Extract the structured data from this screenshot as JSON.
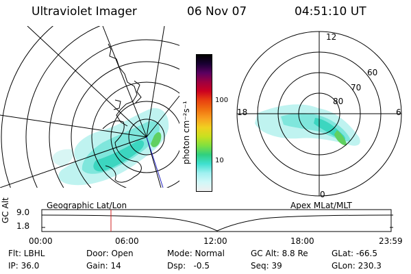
{
  "header": {
    "title": "Ultraviolet Imager",
    "date": "06 Nov 07",
    "time": "04:51:10 UT"
  },
  "colorbar": {
    "label": "photon cm⁻²s⁻¹",
    "ticks": [
      "100",
      "10"
    ],
    "colors": [
      "#000000",
      "#1a0033",
      "#5a0060",
      "#9e0040",
      "#cc0020",
      "#e84010",
      "#f07010",
      "#f8a020",
      "#f0d020",
      "#c8e020",
      "#80e040",
      "#30d080",
      "#40e0d0",
      "#a0f0f0",
      "#d0f8f8",
      "#f0f0f0"
    ]
  },
  "polar": {
    "labels": [
      "12",
      "60",
      "70",
      "80",
      "18",
      "6",
      "0"
    ]
  },
  "timeline": {
    "left_label": "Geographic Lat/Lon",
    "right_label": "Apex MLat/MLT",
    "y_axis": "GC Alt",
    "y_ticks": [
      "9.0",
      "1.8"
    ],
    "x_ticks": [
      "00:00",
      "06:00",
      "12:00",
      "18:00",
      "23:59"
    ],
    "marker_color": "#d02020"
  },
  "footer": {
    "row1": [
      "Flt: LBHL",
      "Door: Open",
      "Mode: Normal",
      "GC Alt: 8.8 Re",
      "GLat: -66.5"
    ],
    "row2": [
      "IP: 36.0",
      "Gain: 14",
      "Dsp:   -0.5",
      "Seq: 39",
      "GLon: 230.3"
    ]
  }
}
